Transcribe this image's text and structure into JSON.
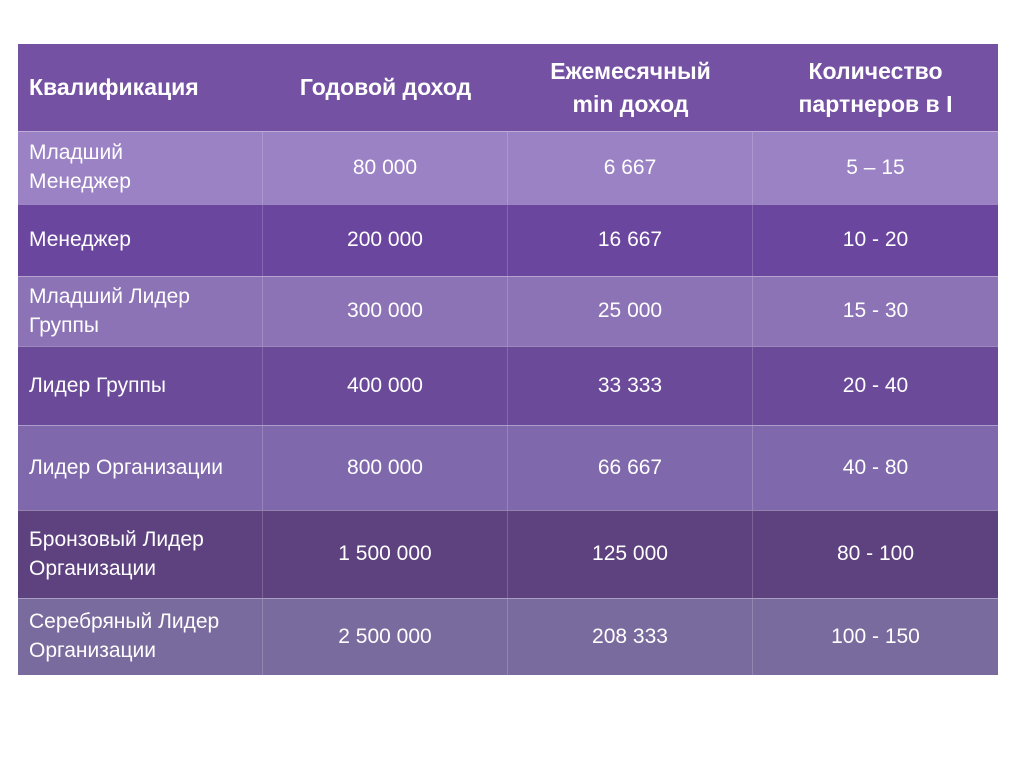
{
  "table": {
    "headers": [
      "Квалификация",
      "Годовой доход",
      "Ежемесячный min доход",
      "Количество партнеров в I"
    ],
    "rows": [
      [
        "Младший Менеджер",
        "80 000",
        "6 667",
        "5 – 15"
      ],
      [
        "Менеджер",
        "200 000",
        "16 667",
        "10 - 20"
      ],
      [
        "Младший Лидер Группы",
        "300 000",
        "25 000",
        "15 - 30"
      ],
      [
        "Лидер Группы",
        "400 000",
        "33 333",
        "20 - 40"
      ],
      [
        "Лидер Организации",
        "800 000",
        "66 667",
        "40 - 80"
      ],
      [
        "Бронзовый Лидер Организации",
        "1 500 000",
        "125 000",
        "80 - 100"
      ],
      [
        "Серебряный Лидер Организации",
        "2 500 000",
        "208 333",
        "100 - 150"
      ]
    ],
    "colors": {
      "header_bg": "#7451a3",
      "text": "#ffffff"
    }
  }
}
